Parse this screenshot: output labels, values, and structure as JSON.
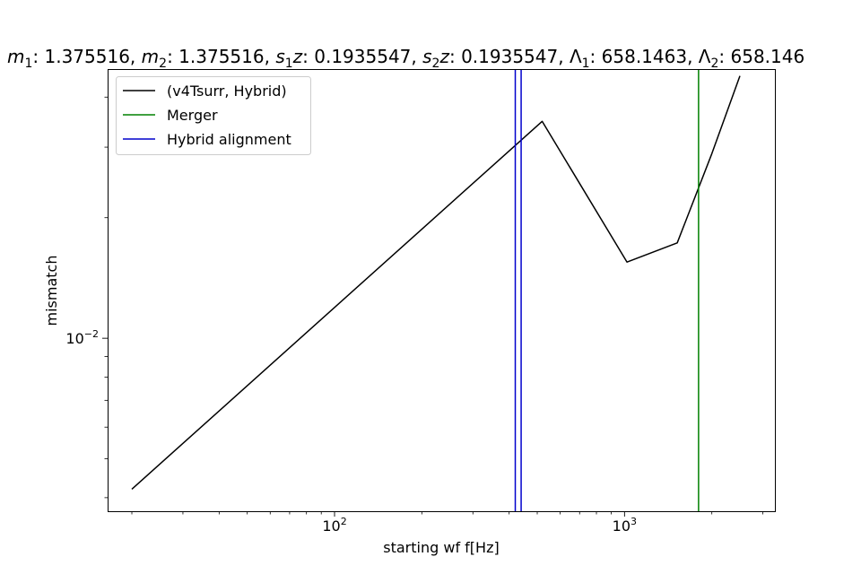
{
  "chart_data": {
    "type": "line",
    "title_parts": {
      "m1_sym": "m",
      "m1_sub": "1",
      "m1_val": ": 1.375516, ",
      "m2_sym": "m",
      "m2_sub": "2",
      "m2_val": ": 1.375516, ",
      "s1_sym": "s",
      "s1_sub": "1",
      "s1_z": "z",
      "s1_val": ": 0.1935547, ",
      "s2_sym": "s",
      "s2_sub": "2",
      "s2_z": "z",
      "s2_val": ": 0.1935547, ",
      "L1_sym": "Λ",
      "L1_sub": "1",
      "L1_val": ": 658.1463, ",
      "L2_sym": "Λ",
      "L2_sub": "2",
      "L2_val": ": 658.146"
    },
    "xlabel": "starting wf f[Hz]",
    "ylabel": "mismatch",
    "x_scale": "log",
    "y_scale": "log",
    "xlim": [
      16.5,
      3300
    ],
    "ylim": [
      0.0037,
      0.047
    ],
    "x_ticks": [
      {
        "value": 100,
        "base": "10",
        "exp": "2"
      },
      {
        "value": 1000,
        "base": "10",
        "exp": "3"
      }
    ],
    "y_ticks": [
      {
        "value": 0.01,
        "base": "10",
        "exp": "−2"
      }
    ],
    "grid": false,
    "legend_position": "top-left",
    "series": [
      {
        "name": "(v4Tsurr, Hybrid)",
        "color": "#000000",
        "kind": "line",
        "x": [
          20,
          520,
          1020,
          1520,
          2000,
          2500
        ],
        "y": [
          0.0042,
          0.0348,
          0.0155,
          0.0173,
          0.0289,
          0.0452
        ]
      },
      {
        "name": "Merger",
        "color": "#008000",
        "kind": "vline",
        "x": [
          1800
        ]
      },
      {
        "name": "Hybrid alignment",
        "color": "#0000cc",
        "kind": "vline",
        "x": [
          420,
          440
        ]
      }
    ]
  }
}
